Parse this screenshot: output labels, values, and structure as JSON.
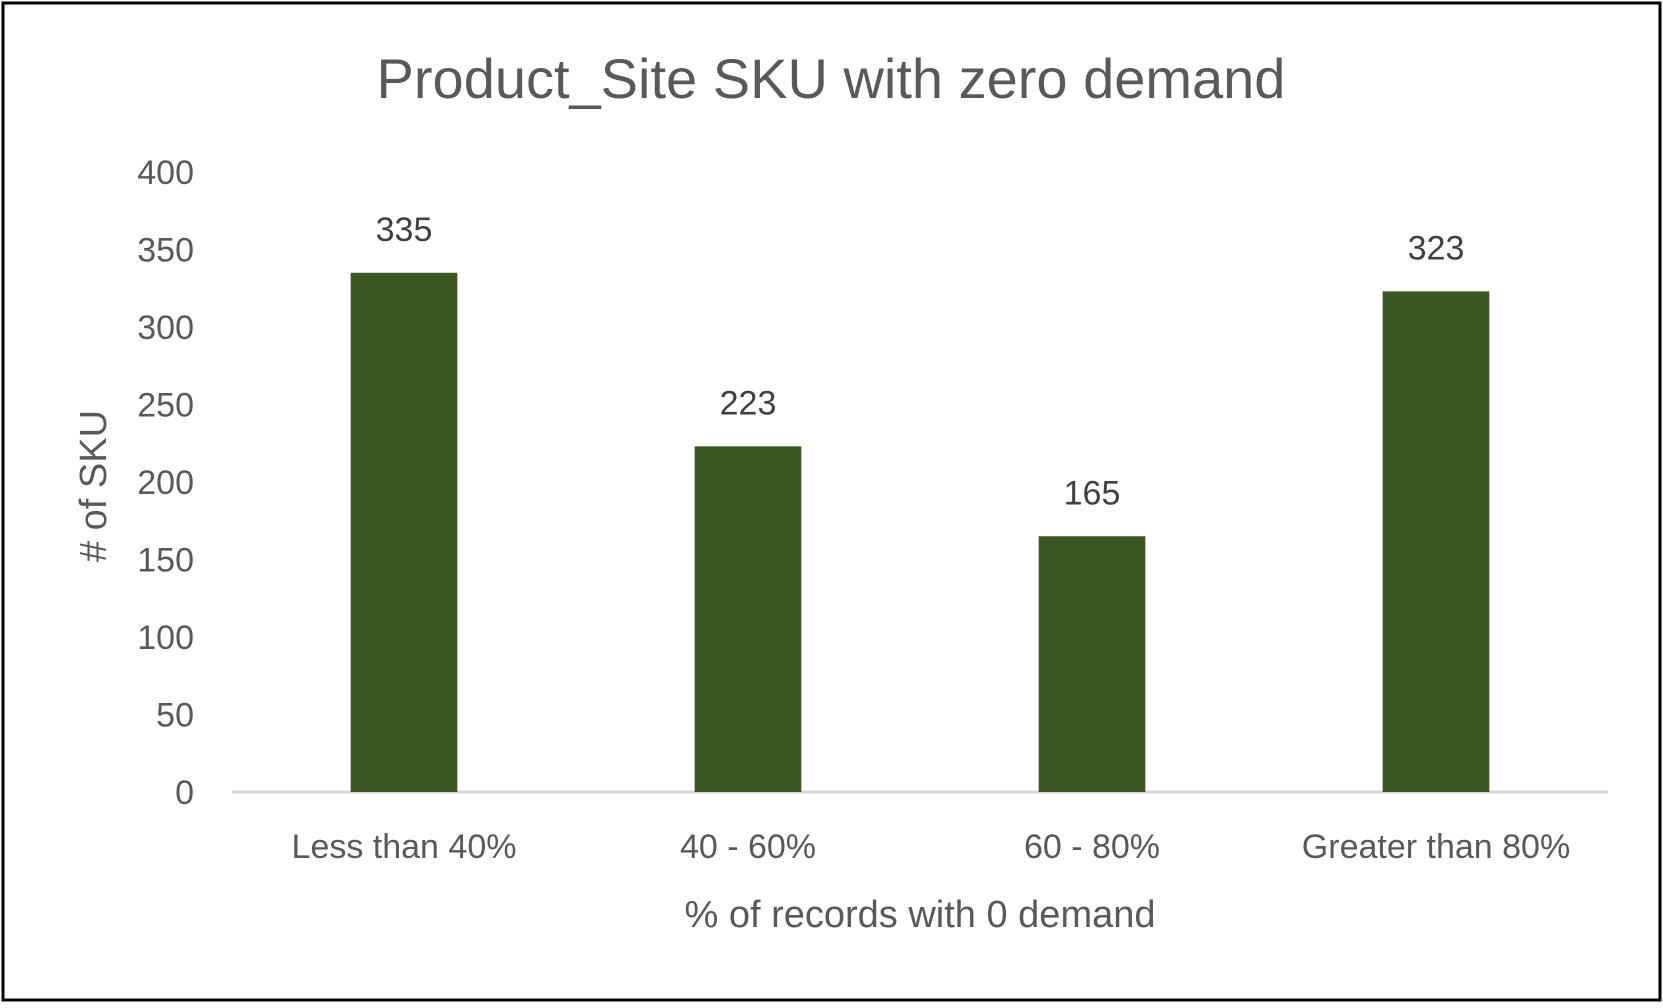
{
  "chart_data": {
    "type": "bar",
    "title": "Product_Site SKU with zero demand",
    "xlabel": "% of records with 0 demand",
    "ylabel": "# of SKU",
    "categories": [
      "Less than 40%",
      "40 - 60%",
      "60 - 80%",
      "Greater than 80%"
    ],
    "values": [
      335,
      223,
      165,
      323
    ],
    "ylim": [
      0,
      400
    ],
    "yticks": [
      0,
      50,
      100,
      150,
      200,
      250,
      300,
      350,
      400
    ],
    "grid": false,
    "legend": "none",
    "colors": {
      "bar": "#3a5723",
      "axis": "#d9d9d9",
      "border": "#000000"
    }
  }
}
